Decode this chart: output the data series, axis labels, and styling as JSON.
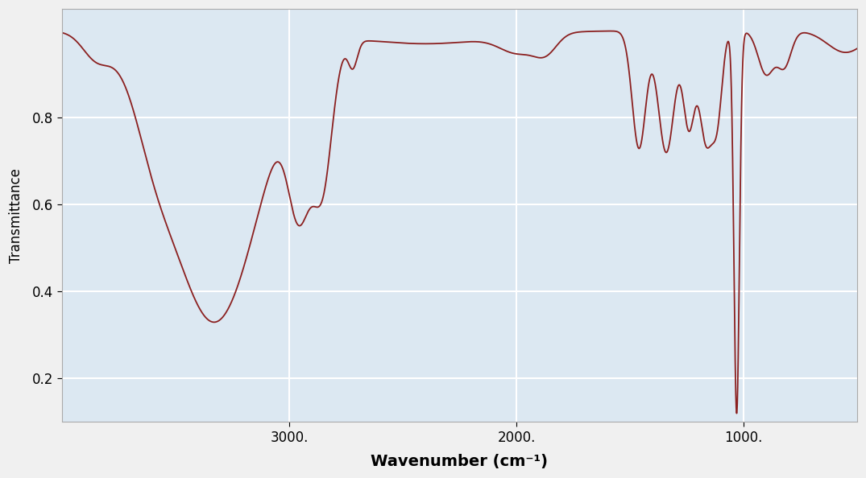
{
  "title": "",
  "xlabel": "Wavenumber (cm⁻¹)",
  "ylabel": "Transmittance",
  "xlim": [
    4000,
    500
  ],
  "ylim": [
    0.1,
    1.05
  ],
  "yticks": [
    0.2,
    0.4,
    0.6,
    0.8
  ],
  "xticks": [
    3000,
    2000,
    1000
  ],
  "xtick_labels": [
    "3000.",
    "2000.",
    "1000."
  ],
  "background_color": "#f0f0f0",
  "line_color": "#8b2020",
  "grid_color": "#ffffff",
  "axes_bg": "#dce8f2"
}
